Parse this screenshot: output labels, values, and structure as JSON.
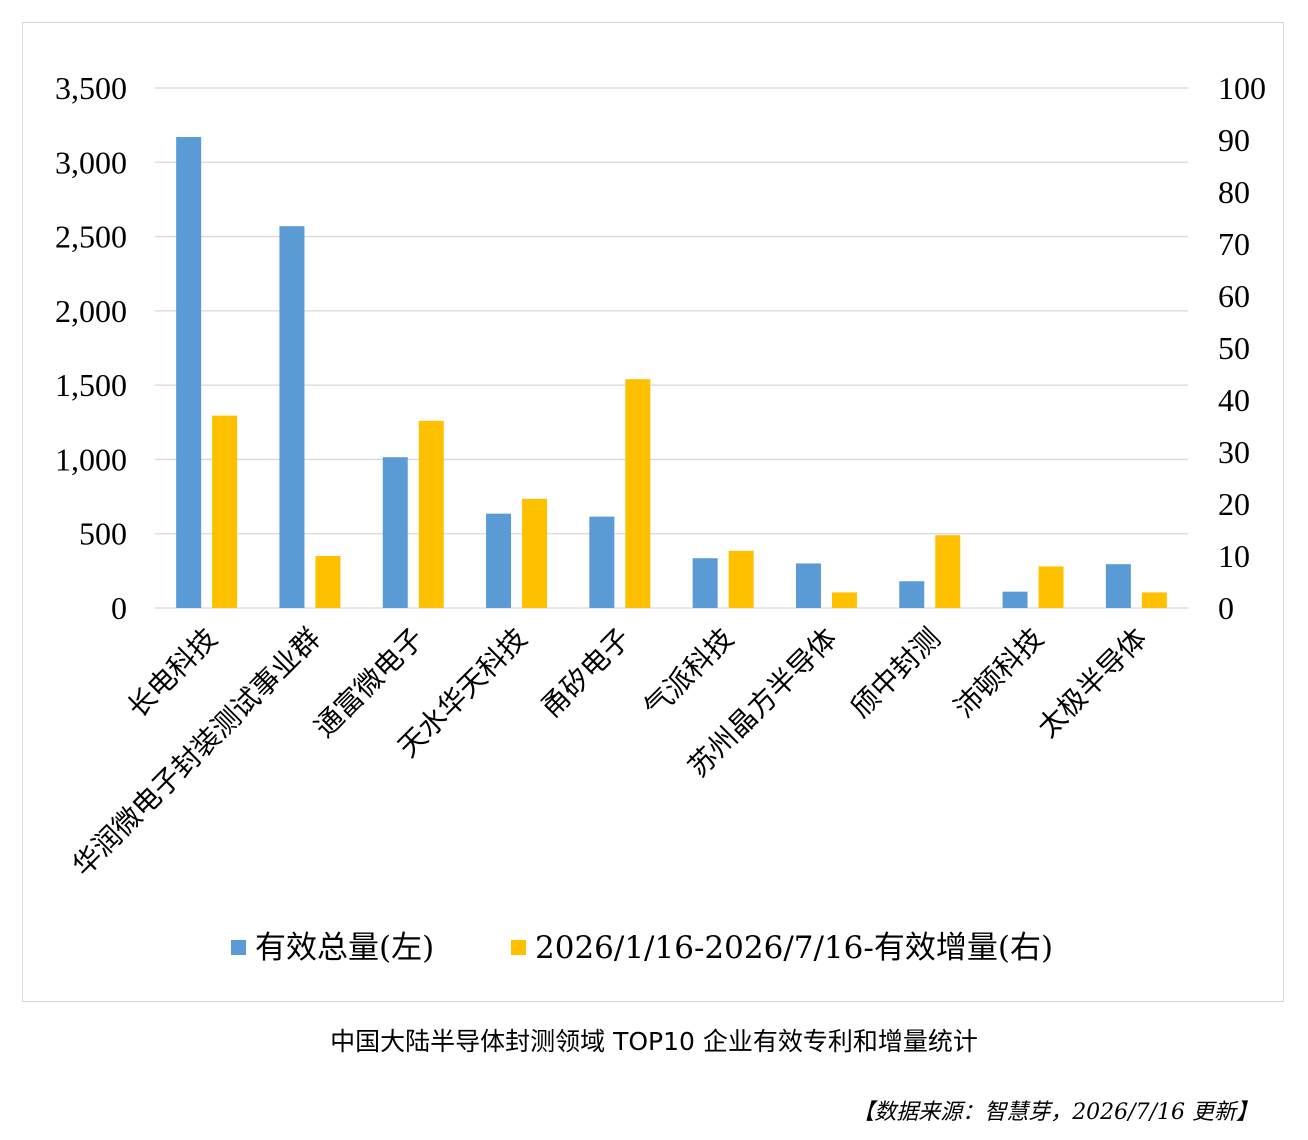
{
  "caption": "中国大陆半导体封测领域 TOP10 企业有效专利和增量统计",
  "source": "【数据来源：智慧芽，2026/7/16 更新】",
  "chart_data": {
    "type": "bar",
    "categories": [
      "长电科技",
      "华润微电子封装测试事业群",
      "通富微电子",
      "天水华天科技",
      "甬矽电子",
      "气派科技",
      "苏州晶方半导体",
      "颀中封测",
      "沛顿科技",
      "太极半导体"
    ],
    "series": [
      {
        "name": "有效总量(左)",
        "axis": "left",
        "color": "#5b9bd5",
        "values": [
          3170,
          2570,
          1015,
          635,
          615,
          335,
          300,
          180,
          110,
          295
        ]
      },
      {
        "name": "2026/1/16-2026/7/16-有效增量(右)",
        "axis": "right",
        "color": "#ffc000",
        "values": [
          37,
          10,
          36,
          21,
          44,
          11,
          3,
          14,
          8,
          3
        ]
      }
    ],
    "y_left": {
      "min": 0,
      "max": 3500,
      "ticks": [
        "0",
        "500",
        "1,000",
        "1,500",
        "2,000",
        "2,500",
        "3,000",
        "3,500"
      ]
    },
    "y_right": {
      "min": 0,
      "max": 100,
      "ticks": [
        "0",
        "10",
        "20",
        "30",
        "40",
        "50",
        "60",
        "70",
        "80",
        "90",
        "100"
      ]
    },
    "grid": true,
    "legend_position": "bottom"
  }
}
